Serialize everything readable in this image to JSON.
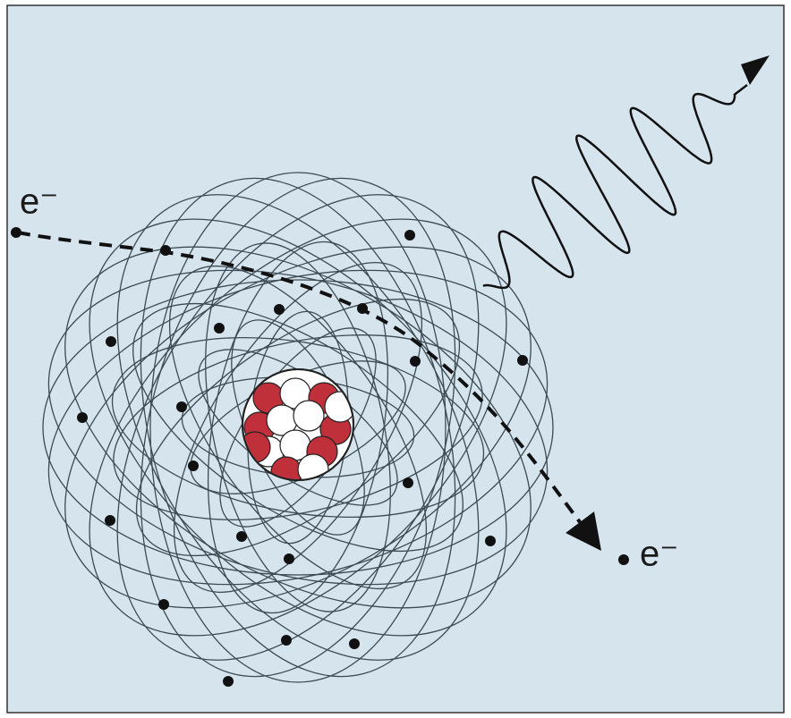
{
  "labels": {
    "incoming": "e⁻",
    "outgoing": "e⁻"
  }
}
